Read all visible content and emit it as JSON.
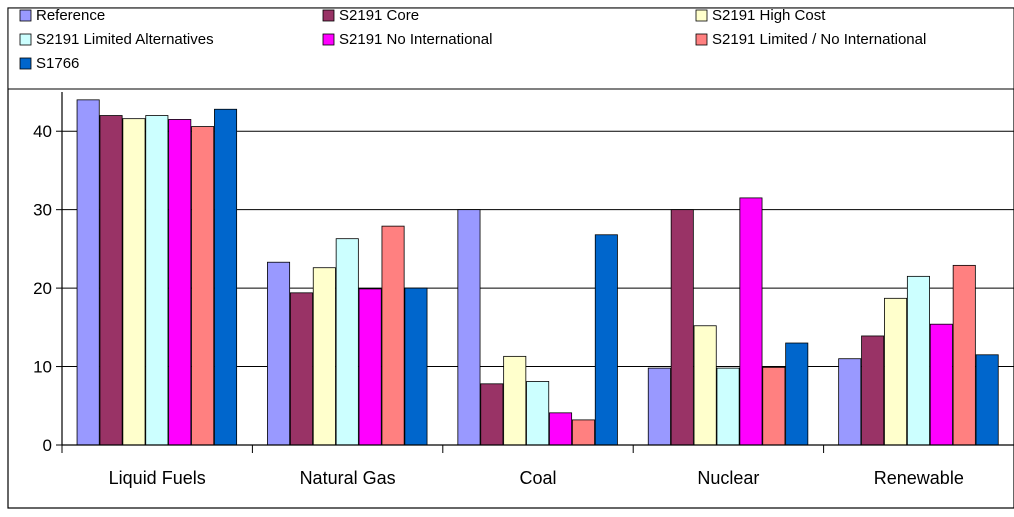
{
  "chart_data": {
    "type": "bar",
    "title": "",
    "xlabel": "",
    "ylabel": "",
    "ylim": [
      0,
      45
    ],
    "yticks": [
      0,
      10,
      20,
      30,
      40
    ],
    "grid": true,
    "legend_position": "top",
    "categories": [
      "Liquid Fuels",
      "Natural Gas",
      "Coal",
      "Nuclear",
      "Renewable"
    ],
    "series": [
      {
        "name": "Reference",
        "color": "#9999FF",
        "values": [
          44,
          23.3,
          30,
          9.8,
          11
        ]
      },
      {
        "name": "S2191 Core",
        "color": "#993366",
        "values": [
          42,
          19.4,
          7.8,
          30,
          13.9
        ]
      },
      {
        "name": "S2191 High Cost",
        "color": "#FFFFCC",
        "values": [
          41.6,
          22.6,
          11.3,
          15.2,
          18.7
        ]
      },
      {
        "name": "S2191 Limited Alternatives",
        "color": "#CCFFFF",
        "values": [
          42,
          26.3,
          8.1,
          9.8,
          21.5
        ]
      },
      {
        "name": "S2191 No International",
        "color": "#FF00FF",
        "values": [
          41.5,
          19.9,
          4.1,
          31.5,
          15.4
        ]
      },
      {
        "name": "S2191 Limited / No International",
        "color": "#FF8080",
        "values": [
          40.6,
          27.9,
          3.2,
          9.9,
          22.9
        ]
      },
      {
        "name": "S1766",
        "color": "#0066CC",
        "values": [
          42.8,
          20,
          26.8,
          13,
          11.5
        ]
      }
    ]
  }
}
